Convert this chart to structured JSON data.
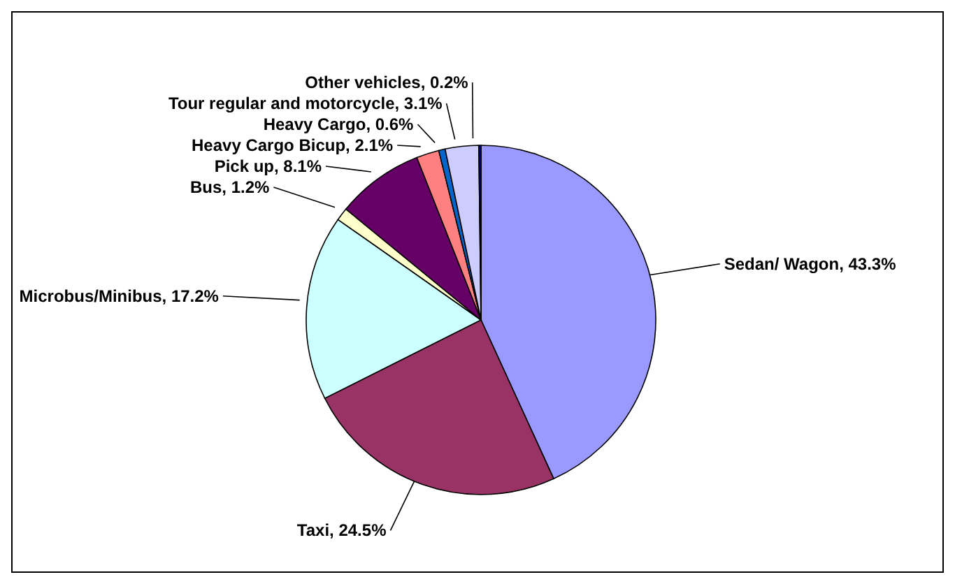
{
  "chart_data": {
    "type": "pie",
    "categories": [
      "Sedan/ Wagon",
      "Taxi",
      "Microbus/Minibus",
      "Bus",
      "Pick up",
      "Heavy Cargo Bicup",
      "Heavy Cargo",
      "Tour regular and motorcycle",
      "Other vehicles"
    ],
    "values": [
      43.3,
      24.5,
      17.2,
      1.2,
      8.1,
      2.1,
      0.6,
      3.1,
      0.2
    ],
    "value_labels": [
      "43.3%",
      "24.5%",
      "17.2%",
      "1.2%",
      "8.1%",
      "2.1%",
      "0.6%",
      "3.1%",
      "0.2%"
    ],
    "colors": [
      "#9999ff",
      "#993366",
      "#ccffff",
      "#ffffcc",
      "#660066",
      "#ff8080",
      "#0066cc",
      "#ccccff",
      "#000080"
    ]
  }
}
